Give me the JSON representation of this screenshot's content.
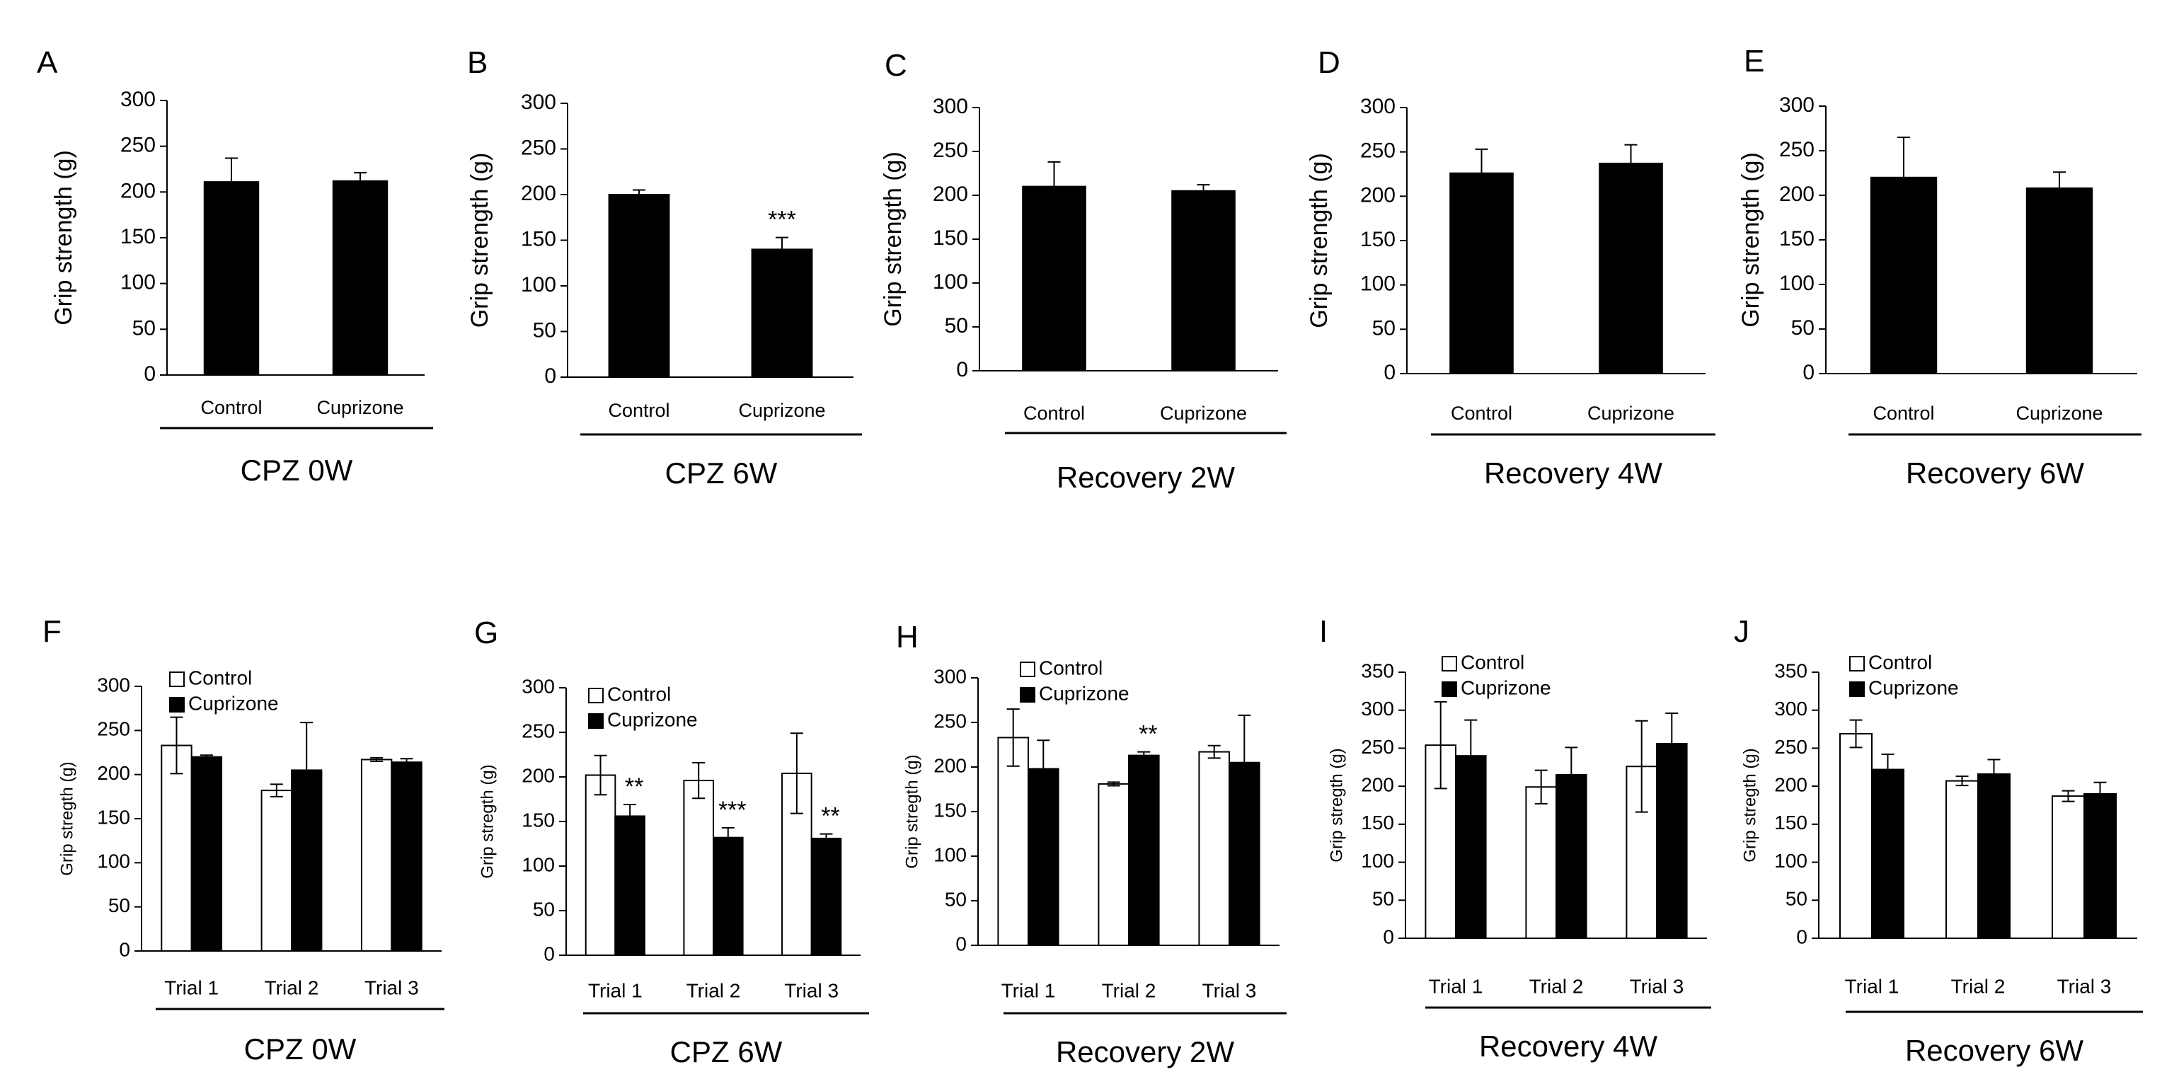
{
  "chart_data": [
    {
      "type": "bar",
      "panel": "A",
      "ylabel": "Grip strength (g)",
      "ylim": [
        0,
        300
      ],
      "yticks": [
        0,
        50,
        100,
        150,
        200,
        250,
        300
      ],
      "categories": [
        "Control",
        "Cuprizone"
      ],
      "series": [
        {
          "name": "Grip strength",
          "fill": "#000000",
          "values": [
            211,
            212
          ],
          "errors": [
            26,
            9
          ],
          "sig": [
            "",
            ""
          ]
        }
      ],
      "group_label": "CPZ 0W"
    },
    {
      "type": "bar",
      "panel": "B",
      "ylabel": "Grip strength (g)",
      "ylim": [
        0,
        300
      ],
      "yticks": [
        0,
        50,
        100,
        150,
        200,
        250,
        300
      ],
      "categories": [
        "Control",
        "Cuprizone"
      ],
      "series": [
        {
          "name": "Grip strength",
          "fill": "#000000",
          "values": [
            200,
            140
          ],
          "errors": [
            5,
            13
          ],
          "sig": [
            "",
            "***"
          ]
        }
      ],
      "group_label": "CPZ 6W"
    },
    {
      "type": "bar",
      "panel": "C",
      "ylabel": "Grip strength (g)",
      "ylim": [
        0,
        300
      ],
      "yticks": [
        0,
        50,
        100,
        150,
        200,
        250,
        300
      ],
      "categories": [
        "Control",
        "Cuprizone"
      ],
      "series": [
        {
          "name": "Grip strength",
          "fill": "#000000",
          "values": [
            210,
            205
          ],
          "errors": [
            28,
            7
          ],
          "sig": [
            "",
            ""
          ]
        }
      ],
      "group_label": "Recovery 2W"
    },
    {
      "type": "bar",
      "panel": "D",
      "ylabel": "Grip strength (g)",
      "ylim": [
        0,
        300
      ],
      "yticks": [
        0,
        50,
        100,
        150,
        200,
        250,
        300
      ],
      "categories": [
        "Control",
        "Cuprizone"
      ],
      "series": [
        {
          "name": "Grip strength",
          "fill": "#000000",
          "values": [
            226,
            237
          ],
          "errors": [
            27,
            21
          ],
          "sig": [
            "",
            ""
          ]
        }
      ],
      "group_label": "Recovery 4W"
    },
    {
      "type": "bar",
      "panel": "E",
      "ylabel": "Grip strength (g)",
      "ylim": [
        0,
        300
      ],
      "yticks": [
        0,
        50,
        100,
        150,
        200,
        250,
        300
      ],
      "categories": [
        "Control",
        "Cuprizone"
      ],
      "series": [
        {
          "name": "Grip strength",
          "fill": "#000000",
          "values": [
            220,
            208
          ],
          "errors": [
            45,
            18
          ],
          "sig": [
            "",
            ""
          ]
        }
      ],
      "group_label": "Recovery 6W"
    },
    {
      "type": "bar",
      "panel": "F",
      "ylabel": "Grip stregth (g)",
      "ylim": [
        0,
        300
      ],
      "yticks": [
        0,
        50,
        100,
        150,
        200,
        250,
        300
      ],
      "categories": [
        "Trial 1",
        "Trial 2",
        "Trial 3"
      ],
      "series": [
        {
          "name": "Control",
          "fill": "#ffffff",
          "values": [
            233,
            182,
            217
          ],
          "errors": [
            32,
            7,
            2
          ],
          "sig": [
            "",
            "",
            ""
          ]
        },
        {
          "name": "Cuprizone",
          "fill": "#000000",
          "values": [
            220,
            205,
            214
          ],
          "errors": [
            2,
            54,
            4
          ],
          "sig": [
            "",
            "",
            ""
          ]
        }
      ],
      "legend": [
        "Control",
        "Cuprizone"
      ],
      "group_label": "CPZ 0W"
    },
    {
      "type": "bar",
      "panel": "G",
      "ylabel": "Grip stregth (g)",
      "ylim": [
        0,
        300
      ],
      "yticks": [
        0,
        50,
        100,
        150,
        200,
        250,
        300
      ],
      "categories": [
        "Trial 1",
        "Trial 2",
        "Trial 3"
      ],
      "series": [
        {
          "name": "Control",
          "fill": "#ffffff",
          "values": [
            202,
            196,
            204
          ],
          "errors": [
            22,
            20,
            45
          ],
          "sig": [
            "",
            "",
            ""
          ]
        },
        {
          "name": "Cuprizone",
          "fill": "#000000",
          "values": [
            156,
            132,
            131
          ],
          "errors": [
            13,
            11,
            5
          ],
          "sig": [
            "**",
            "***",
            "**"
          ]
        }
      ],
      "legend": [
        "Control",
        "Cuprizone"
      ],
      "group_label": "CPZ 6W"
    },
    {
      "type": "bar",
      "panel": "H",
      "ylabel": "Grip stregth (g)",
      "ylim": [
        0,
        300
      ],
      "yticks": [
        0,
        50,
        100,
        150,
        200,
        250,
        300
      ],
      "categories": [
        "Trial 1",
        "Trial 2",
        "Trial 3"
      ],
      "series": [
        {
          "name": "Control",
          "fill": "#ffffff",
          "values": [
            233,
            181,
            217
          ],
          "errors": [
            32,
            2,
            7
          ],
          "sig": [
            "",
            "",
            ""
          ]
        },
        {
          "name": "Cuprizone",
          "fill": "#000000",
          "values": [
            198,
            213,
            205
          ],
          "errors": [
            32,
            4,
            53
          ],
          "sig": [
            "",
            "**",
            ""
          ]
        }
      ],
      "legend": [
        "Control",
        "Cuprizone"
      ],
      "group_label": "Recovery 2W"
    },
    {
      "type": "bar",
      "panel": "I",
      "ylabel": "Grip stregth (g)",
      "ylim": [
        0,
        350
      ],
      "yticks": [
        0,
        50,
        100,
        150,
        200,
        250,
        300,
        350
      ],
      "categories": [
        "Trial 1",
        "Trial 2",
        "Trial 3"
      ],
      "series": [
        {
          "name": "Control",
          "fill": "#ffffff",
          "values": [
            254,
            199,
            226
          ],
          "errors": [
            57,
            22,
            60
          ],
          "sig": [
            "",
            "",
            ""
          ]
        },
        {
          "name": "Cuprizone",
          "fill": "#000000",
          "values": [
            240,
            215,
            256
          ],
          "errors": [
            47,
            36,
            40
          ],
          "sig": [
            "",
            "",
            ""
          ]
        }
      ],
      "legend": [
        "Control",
        "Cuprizone"
      ],
      "group_label": "Recovery 4W"
    },
    {
      "type": "bar",
      "panel": "J",
      "ylabel": "Grip stregth (g)",
      "ylim": [
        0,
        350
      ],
      "yticks": [
        0,
        50,
        100,
        150,
        200,
        250,
        300,
        350
      ],
      "categories": [
        "Trial 1",
        "Trial 2",
        "Trial 3"
      ],
      "series": [
        {
          "name": "Control",
          "fill": "#ffffff",
          "values": [
            269,
            207,
            187
          ],
          "errors": [
            18,
            6,
            7
          ],
          "sig": [
            "",
            "",
            ""
          ]
        },
        {
          "name": "Cuprizone",
          "fill": "#000000",
          "values": [
            222,
            216,
            190
          ],
          "errors": [
            20,
            19,
            15
          ],
          "sig": [
            "",
            "",
            ""
          ]
        }
      ],
      "legend": [
        "Control",
        "Cuprizone"
      ],
      "group_label": "Recovery 6W"
    }
  ]
}
